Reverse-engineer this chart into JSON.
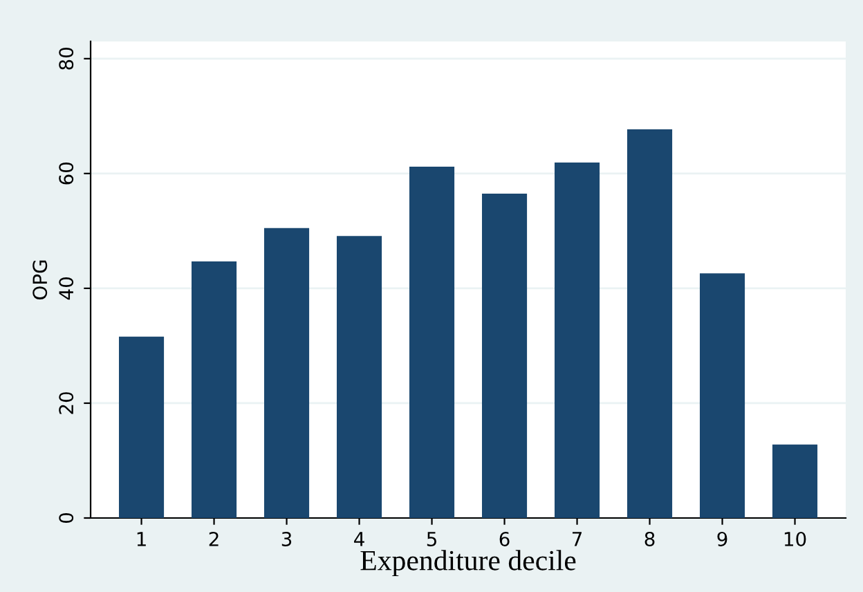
{
  "chart_data": {
    "type": "bar",
    "xlabel": "Expenditure decile",
    "ylabel": "OPG",
    "categories": [
      "1",
      "2",
      "3",
      "4",
      "5",
      "6",
      "7",
      "8",
      "9",
      "10"
    ],
    "values": [
      31.6,
      44.7,
      50.5,
      49.1,
      61.2,
      56.5,
      61.9,
      67.7,
      42.6,
      12.8
    ],
    "color": "#1a476f",
    "ylim": [
      0,
      83
    ],
    "yticks": [
      0,
      20,
      40,
      60,
      80
    ],
    "grid": "y",
    "legend": false
  }
}
